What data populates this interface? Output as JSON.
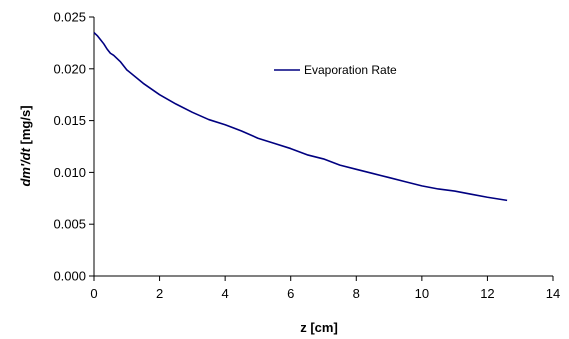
{
  "chart_data": {
    "type": "line",
    "title": "",
    "xlabel": "z [cm]",
    "ylabel_parts": [
      "dm'/dt",
      " [mg/s]"
    ],
    "xlim": [
      0,
      14
    ],
    "ylim": [
      0,
      0.025
    ],
    "x_ticks": [
      0,
      2,
      4,
      6,
      8,
      10,
      12,
      14
    ],
    "x_tick_labels": [
      "0",
      "2",
      "4",
      "6",
      "8",
      "10",
      "12",
      "14"
    ],
    "y_ticks": [
      0,
      0.005,
      0.01,
      0.015,
      0.02,
      0.025
    ],
    "y_tick_labels": [
      "0.000",
      "0.005",
      "0.010",
      "0.015",
      "0.020",
      "0.025"
    ],
    "grid": false,
    "legend": {
      "position": "top-center",
      "entries": [
        "Evaporation Rate"
      ]
    },
    "series": [
      {
        "name": "Evaporation Rate",
        "color": "#000080",
        "x": [
          0,
          0.1,
          0.2,
          0.3,
          0.4,
          0.5,
          0.6,
          0.8,
          1.0,
          1.5,
          2.0,
          2.5,
          3.0,
          3.5,
          4.0,
          4.5,
          5.0,
          5.5,
          6.0,
          6.5,
          7.0,
          7.5,
          8.0,
          8.5,
          9.0,
          9.5,
          10.0,
          10.5,
          11.0,
          11.5,
          12.0,
          12.6
        ],
        "values": [
          0.0235,
          0.0232,
          0.0228,
          0.0224,
          0.0219,
          0.0215,
          0.0213,
          0.0207,
          0.0199,
          0.0186,
          0.0175,
          0.0166,
          0.0158,
          0.0151,
          0.0146,
          0.014,
          0.0133,
          0.0128,
          0.0123,
          0.0117,
          0.0113,
          0.0107,
          0.0103,
          0.0099,
          0.0095,
          0.0091,
          0.0087,
          0.0084,
          0.0082,
          0.0079,
          0.0076,
          0.0073
        ]
      }
    ]
  }
}
